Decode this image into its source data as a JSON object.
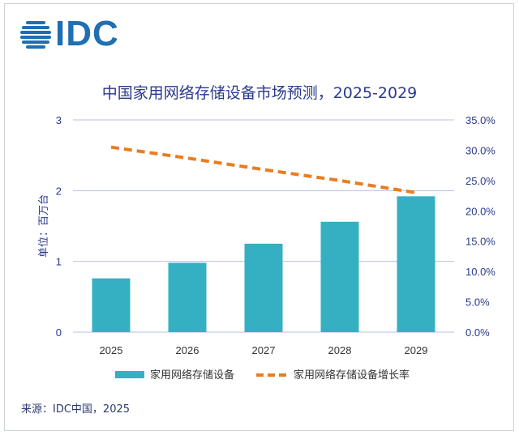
{
  "logo": {
    "text": "IDC",
    "icon": "idc-globe-logo"
  },
  "colors": {
    "bar": "#35b0c2",
    "line": "#e87d22",
    "axis_text": "#2a3a8c",
    "grid": "#b9bfe3"
  },
  "chart_data": {
    "type": "bar",
    "title": "中国家用网络存储设备市场预测，2025-2029",
    "ylabel": "单位：百万台",
    "categories": [
      "2025",
      "2026",
      "2027",
      "2028",
      "2029"
    ],
    "ylim": [
      0,
      3
    ],
    "y_ticks": [
      "0",
      "1",
      "2",
      "3"
    ],
    "y2lim": [
      0,
      0.35
    ],
    "y2_ticks": [
      "0.0%",
      "5.0%",
      "10.0%",
      "15.0%",
      "20.0%",
      "25.0%",
      "30.0%",
      "35.0%"
    ],
    "grid": true,
    "legend_position": "bottom",
    "series": [
      {
        "name": "家用网络存储设备",
        "type": "bar",
        "axis": "left",
        "values": [
          0.76,
          0.98,
          1.25,
          1.56,
          1.92
        ]
      },
      {
        "name": "家用网络存储设备增长率",
        "type": "line",
        "style": "dashed",
        "axis": "right",
        "values": [
          0.305,
          0.287,
          0.268,
          0.25,
          0.23
        ]
      }
    ]
  },
  "source": "来源：IDC中国，2025"
}
